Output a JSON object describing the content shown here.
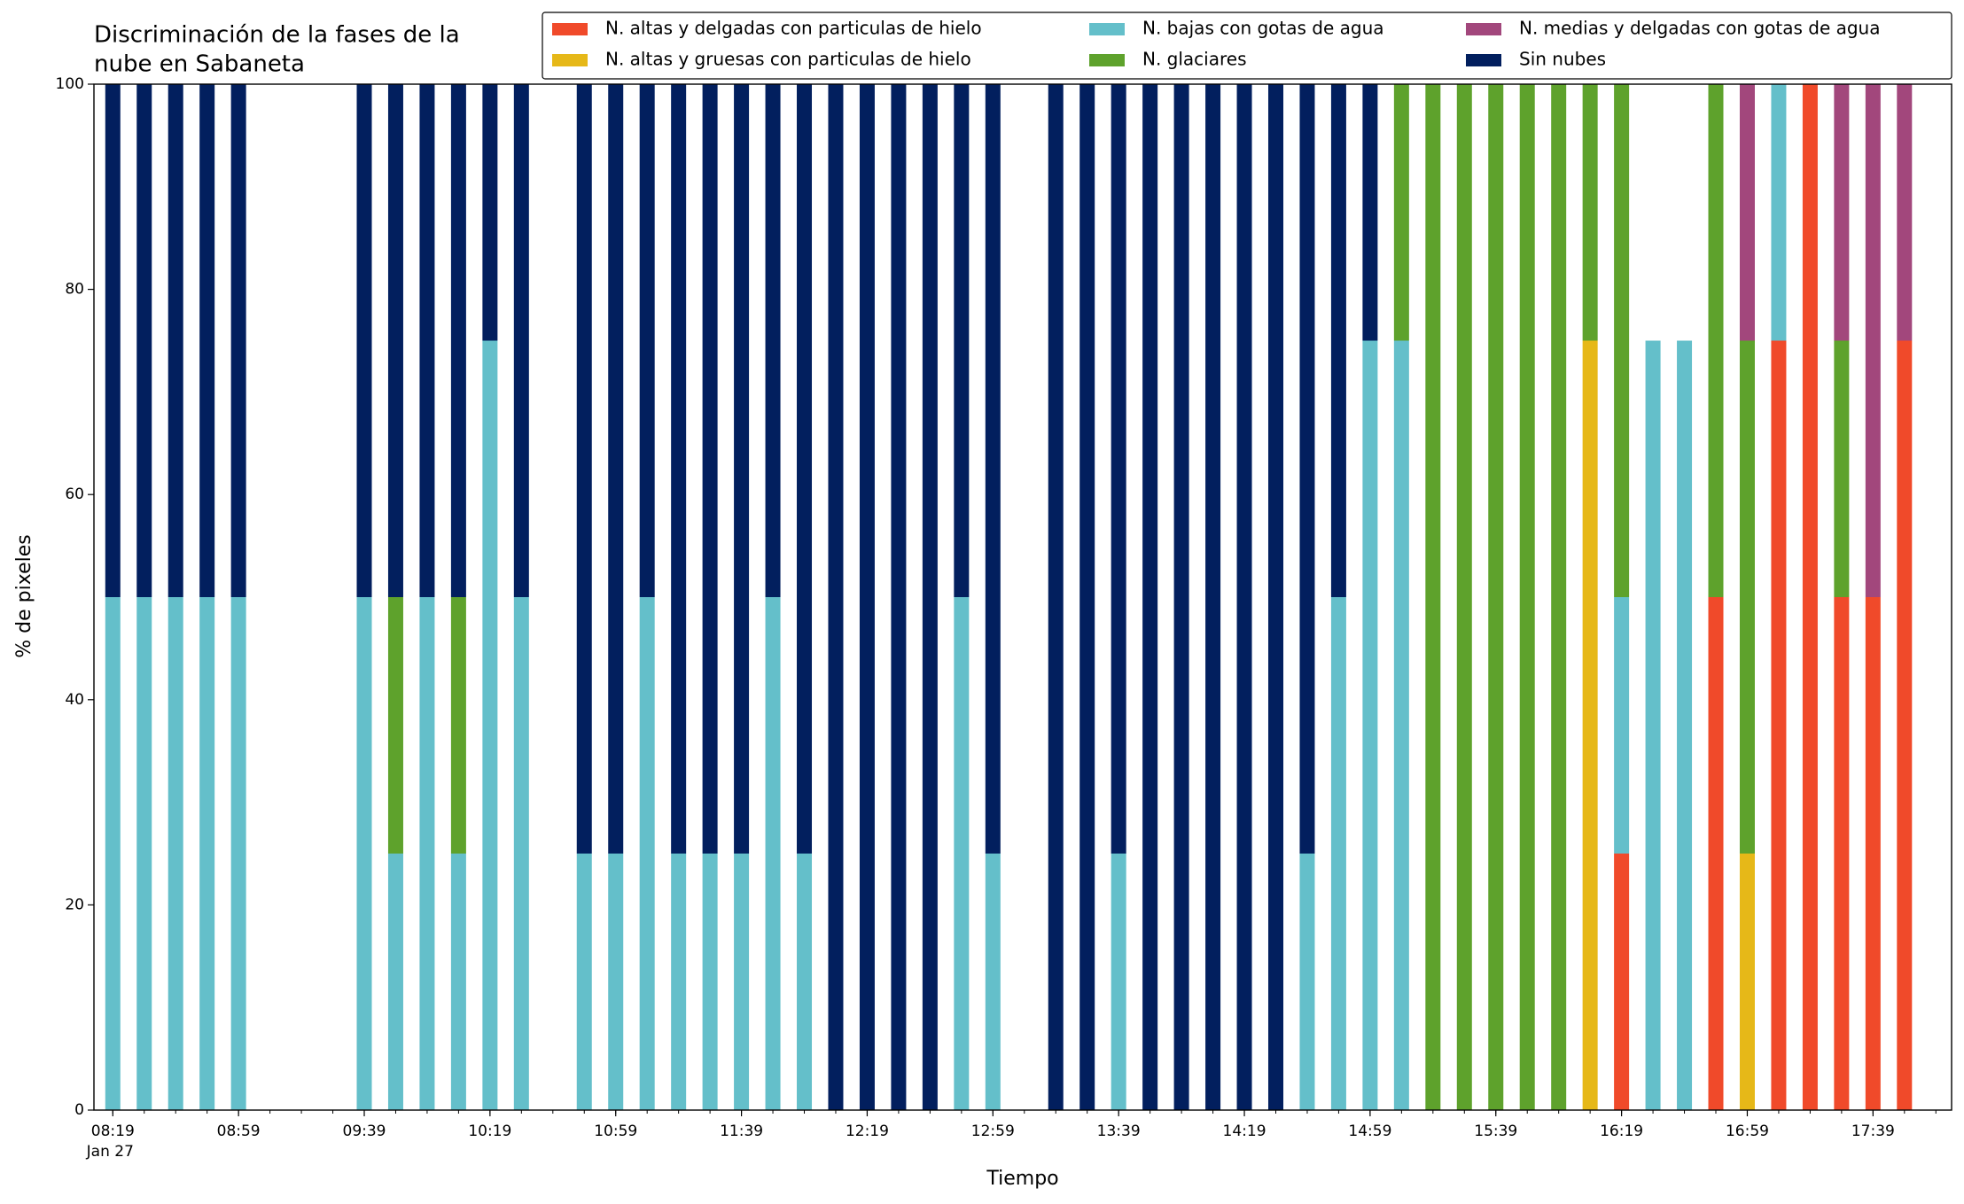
{
  "chart_data": {
    "type": "stacked-bar",
    "title": [
      "Discriminación de la fases de la",
      "nube en Sabaneta"
    ],
    "xlabel": "Tiempo",
    "ylabel": "% de pixeles",
    "x_date_label": "Jan 27",
    "x": [
      "08:19",
      "08:29",
      "08:39",
      "08:49",
      "08:59",
      "09:39",
      "09:49",
      "09:59",
      "10:09",
      "10:19",
      "10:29",
      "10:49",
      "10:59",
      "11:09",
      "11:19",
      "11:29",
      "11:39",
      "11:49",
      "11:59",
      "12:09",
      "12:19",
      "12:29",
      "12:39",
      "12:49",
      "12:59",
      "13:19",
      "13:29",
      "13:39",
      "13:49",
      "13:59",
      "14:09",
      "14:19",
      "14:29",
      "14:39",
      "14:49",
      "14:59",
      "15:09",
      "15:19",
      "15:29",
      "15:39",
      "15:49",
      "15:59",
      "16:09",
      "16:19",
      "16:29",
      "16:39",
      "16:49",
      "16:59",
      "17:09",
      "17:19",
      "17:29",
      "17:39",
      "17:49"
    ],
    "xlim": [
      "08:13",
      "18:04"
    ],
    "xticks": [
      "08:19",
      "08:59",
      "09:39",
      "10:19",
      "10:59",
      "11:39",
      "12:19",
      "12:59",
      "13:39",
      "14:19",
      "14:59",
      "15:39",
      "16:19",
      "16:59",
      "17:39"
    ],
    "ylim": [
      0,
      100
    ],
    "yticks": [
      0,
      20,
      40,
      60,
      80,
      100
    ],
    "legend": "top-right",
    "series": [
      {
        "name": "N. altas y delgadas con particulas de hielo",
        "color": "#f04a2a",
        "values": [
          0,
          0,
          0,
          0,
          0,
          0,
          0,
          0,
          0,
          0,
          0,
          0,
          0,
          0,
          0,
          0,
          0,
          0,
          0,
          0,
          0,
          0,
          0,
          0,
          0,
          0,
          0,
          0,
          0,
          0,
          0,
          0,
          0,
          0,
          0,
          0,
          0,
          0,
          0,
          0,
          0,
          0,
          0,
          25,
          0,
          0,
          50,
          0,
          75,
          100,
          50,
          50,
          75
        ]
      },
      {
        "name": "N. altas y gruesas con particulas de hielo",
        "color": "#e6b818",
        "values": [
          0,
          0,
          0,
          0,
          0,
          0,
          0,
          0,
          0,
          0,
          0,
          0,
          0,
          0,
          0,
          0,
          0,
          0,
          0,
          0,
          0,
          0,
          0,
          0,
          0,
          0,
          0,
          0,
          0,
          0,
          0,
          0,
          0,
          0,
          0,
          0,
          0,
          0,
          0,
          0,
          0,
          0,
          75,
          0,
          0,
          0,
          0,
          25,
          0,
          0,
          0,
          0,
          0
        ]
      },
      {
        "name": "N. bajas con gotas de agua",
        "color": "#64bfca",
        "values": [
          50,
          50,
          50,
          50,
          50,
          50,
          25,
          50,
          25,
          75,
          50,
          25,
          25,
          50,
          25,
          25,
          25,
          50,
          25,
          0,
          0,
          0,
          0,
          50,
          25,
          0,
          0,
          25,
          0,
          0,
          0,
          0,
          0,
          25,
          50,
          75,
          75,
          0,
          0,
          0,
          0,
          0,
          0,
          25,
          75,
          75,
          0,
          0,
          25,
          0,
          0,
          0,
          0
        ]
      },
      {
        "name": "N. glaciares",
        "color": "#5ea22c",
        "values": [
          0,
          0,
          0,
          0,
          0,
          0,
          25,
          0,
          25,
          0,
          0,
          0,
          0,
          0,
          0,
          0,
          0,
          0,
          0,
          0,
          0,
          0,
          0,
          0,
          0,
          0,
          0,
          0,
          0,
          0,
          0,
          0,
          0,
          0,
          0,
          0,
          25,
          100,
          100,
          100,
          100,
          100,
          25,
          50,
          0,
          0,
          50,
          50,
          0,
          0,
          25,
          0,
          0
        ]
      },
      {
        "name": "N. medias y delgadas con gotas de agua",
        "color": "#a2477c",
        "values": [
          0,
          0,
          0,
          0,
          0,
          0,
          0,
          0,
          0,
          0,
          0,
          0,
          0,
          0,
          0,
          0,
          0,
          0,
          0,
          0,
          0,
          0,
          0,
          0,
          0,
          0,
          0,
          0,
          0,
          0,
          0,
          0,
          0,
          0,
          0,
          0,
          0,
          0,
          0,
          0,
          0,
          0,
          0,
          0,
          0,
          0,
          0,
          25,
          0,
          0,
          25,
          50,
          25
        ]
      },
      {
        "name": "Sin nubes",
        "color": "#021f5e",
        "values": [
          50,
          50,
          50,
          50,
          50,
          50,
          50,
          50,
          50,
          25,
          50,
          75,
          75,
          50,
          75,
          75,
          75,
          50,
          75,
          100,
          100,
          100,
          100,
          50,
          75,
          100,
          100,
          75,
          100,
          100,
          100,
          100,
          100,
          75,
          50,
          25,
          0,
          0,
          0,
          0,
          0,
          0,
          0,
          0,
          0,
          0,
          0,
          0,
          0,
          0,
          0,
          0,
          0
        ]
      }
    ]
  }
}
